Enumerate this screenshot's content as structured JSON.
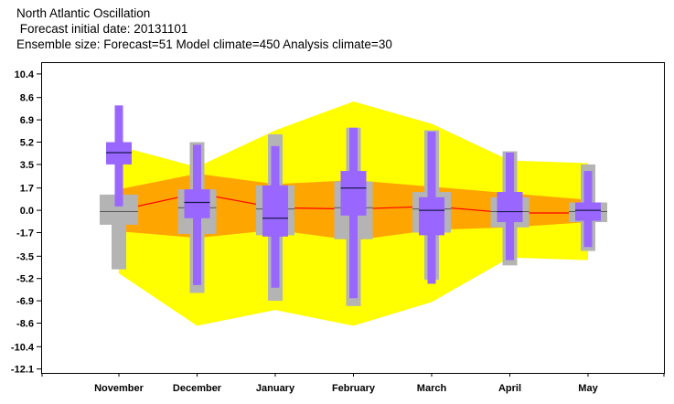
{
  "titles": {
    "line1": "North Atlantic Oscillation",
    "line2": " Forecast initial date: 20131101",
    "line3": "Ensemble size: Forecast=51 Model climate=450 Analysis climate=30"
  },
  "chart_data": {
    "type": "box",
    "categories": [
      "November",
      "December",
      "January",
      "February",
      "March",
      "April",
      "May"
    ],
    "y_ticks": [
      "10.4",
      "8.6",
      "6.9",
      "5.2",
      "3.5",
      "1.7",
      "0.0",
      "-1.7",
      "-3.5",
      "-5.2",
      "-6.9",
      "-8.6",
      "-10.4",
      "-12.1"
    ],
    "y_tick_values": [
      10.4,
      8.6,
      6.9,
      5.2,
      3.5,
      1.7,
      0.0,
      -1.7,
      -3.5,
      -5.2,
      -6.9,
      -8.6,
      -10.4,
      -12.1
    ],
    "ylim": [
      -12.4,
      11.3
    ],
    "grid": false,
    "colors": {
      "outer_band": "#ffff00",
      "inner_band": "#ffa500",
      "climate_box": "#b4b4b4",
      "forecast_box": "#9966ff",
      "median_line": "#ff0000"
    },
    "model_climate_range": {
      "upper": [
        4.9,
        3.3,
        6.1,
        8.3,
        6.6,
        3.8,
        3.6
      ],
      "lower": [
        -4.8,
        -8.8,
        -7.6,
        -8.8,
        -7.0,
        -3.6,
        -3.8
      ]
    },
    "model_climate_interquartile": {
      "upper": [
        1.6,
        2.8,
        2.0,
        2.3,
        1.8,
        1.3,
        0.8
      ],
      "lower": [
        -1.6,
        -2.1,
        -1.5,
        -2.3,
        -1.5,
        -1.3,
        -0.9
      ]
    },
    "model_climate_median": [
      0.0,
      1.3,
      0.2,
      0.1,
      0.3,
      -0.2,
      -0.2
    ],
    "analysis_climate": [
      {
        "min": -4.5,
        "q1": -1.1,
        "median": -0.1,
        "q3": 1.2,
        "max": 1.2
      },
      {
        "min": -6.3,
        "q1": -1.8,
        "median": 0.2,
        "q3": 1.6,
        "max": 5.2
      },
      {
        "min": -6.9,
        "q1": -1.9,
        "median": 0.1,
        "q3": 1.9,
        "max": 5.8
      },
      {
        "min": -7.3,
        "q1": -2.2,
        "median": 0.2,
        "q3": 2.2,
        "max": 6.3
      },
      {
        "min": -5.3,
        "q1": -1.7,
        "median": 0.1,
        "q3": 1.4,
        "max": 6.1
      },
      {
        "min": -4.2,
        "q1": -1.3,
        "median": -0.1,
        "q3": 1.0,
        "max": 4.5
      },
      {
        "min": -3.1,
        "q1": -0.9,
        "median": -0.1,
        "q3": 0.6,
        "max": 3.5
      }
    ],
    "forecast": [
      {
        "min": 0.3,
        "q1": 3.5,
        "median": 4.4,
        "q3": 5.2,
        "max": 8.0
      },
      {
        "min": -5.7,
        "q1": -0.6,
        "median": 0.6,
        "q3": 1.6,
        "max": 5.0
      },
      {
        "min": -5.9,
        "q1": -2.0,
        "median": -0.6,
        "q3": 1.9,
        "max": 4.9
      },
      {
        "min": -6.7,
        "q1": -0.4,
        "median": 1.7,
        "q3": 3.0,
        "max": 6.3
      },
      {
        "min": -5.6,
        "q1": -1.9,
        "median": 0.0,
        "q3": 1.0,
        "max": 6.0
      },
      {
        "min": -3.8,
        "q1": -0.9,
        "median": -0.1,
        "q3": 1.4,
        "max": 4.4
      },
      {
        "min": -2.8,
        "q1": -0.8,
        "median": 0.0,
        "q3": 0.6,
        "max": 3.0
      }
    ]
  }
}
